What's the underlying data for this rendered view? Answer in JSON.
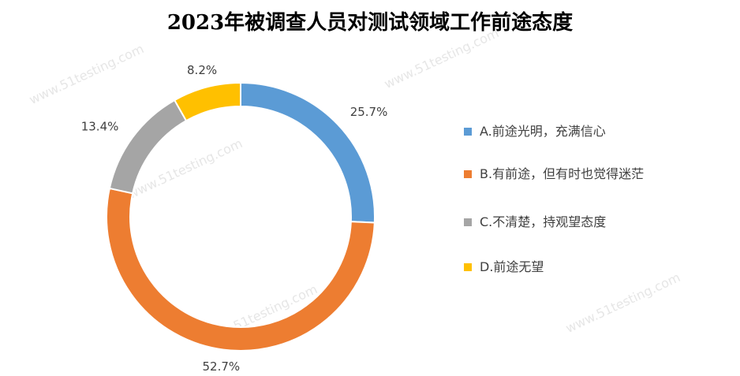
{
  "chart_data": {
    "type": "donut",
    "title": "2023年被调查人员对测试领域工作前途态度",
    "categories": [
      "A.前途光明，充满信心",
      "B.有前途，但有时也觉得迷茫",
      "C.不清楚，持观望态度",
      "D.前途无望"
    ],
    "values": [
      25.7,
      52.7,
      13.4,
      8.2
    ],
    "value_labels": [
      "25.7%",
      "52.7%",
      "13.4%",
      "8.2%"
    ],
    "colors": [
      "#5b9bd5",
      "#ed7d31",
      "#a5a5a5",
      "#ffc000"
    ],
    "legend": "right",
    "watermark": "www.51testing.com"
  }
}
